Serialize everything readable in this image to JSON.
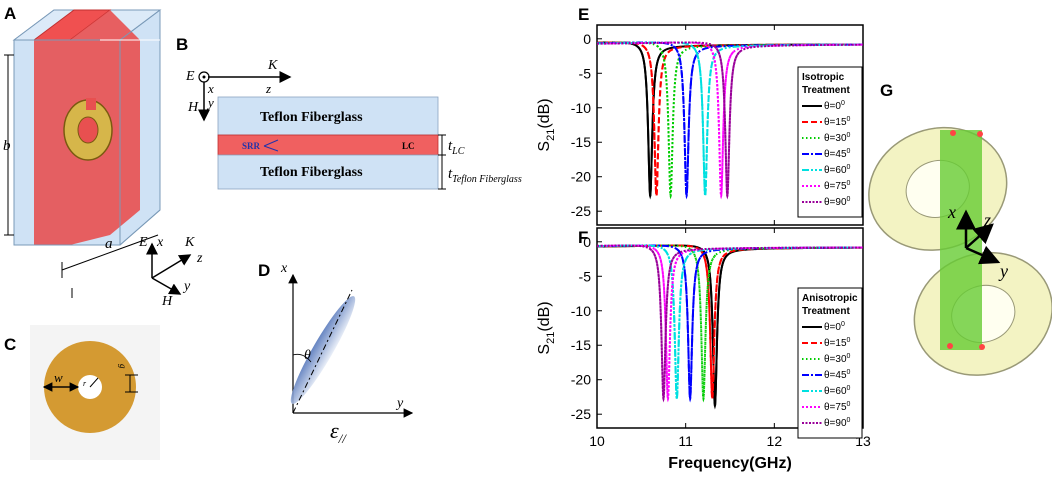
{
  "panels": {
    "A": {
      "label": "A",
      "dim_b": "b",
      "dim_a": "a",
      "ax_E": "E",
      "ax_x": "x",
      "ax_K": "K",
      "ax_z": "z",
      "ax_H": "H",
      "ax_y": "y"
    },
    "B": {
      "label": "B",
      "E": "E",
      "x": "x",
      "K": "K",
      "z": "z",
      "H": "H",
      "y": "y",
      "top_layer": "Teflon Fiberglass",
      "bottom_layer": "Teflon Fiberglass",
      "srr": "SRR",
      "lc": "LC",
      "t_lc_main": "t",
      "t_lc_sub": "LC",
      "t_tf_main": "t",
      "t_tf_sub": "Teflon Fiberglass"
    },
    "C": {
      "label": "C",
      "w": "w",
      "r": "r",
      "g": "g"
    },
    "D": {
      "label": "D",
      "x": "x",
      "y": "y",
      "theta": "θ",
      "eps": "ε",
      "eps_sub": "//"
    },
    "G": {
      "label": "G",
      "x": "x",
      "y": "y",
      "z": "z"
    }
  },
  "chart_data": [
    {
      "type": "line",
      "panel": "E",
      "title": "E",
      "xlabel": "",
      "ylabel": "S21(dB)",
      "ylabel_main": "S",
      "ylabel_sub": "21",
      "ylabel_rest": "(dB)",
      "xlim": [
        10,
        13
      ],
      "ylim": [
        -27,
        2
      ],
      "yticks": [
        0,
        -5,
        -10,
        -15,
        -20,
        -25
      ],
      "legend_title_1": "Isotropic",
      "legend_title_2": "Treatment",
      "legend_pos": "right",
      "series": [
        {
          "name": "θ=0",
          "sup": "0",
          "color": "#000000",
          "dash": "none",
          "f0": 10.6,
          "min": -22,
          "width": 0.028
        },
        {
          "name": "θ=15",
          "sup": "0",
          "color": "#ff0000",
          "dash": "6,3",
          "f0": 10.67,
          "min": -22,
          "width": 0.028
        },
        {
          "name": "θ=30",
          "sup": "0",
          "color": "#00cc00",
          "dash": "1.5,2.5",
          "f0": 10.83,
          "min": -22,
          "width": 0.028
        },
        {
          "name": "θ=45",
          "sup": "0",
          "color": "#0000ff",
          "dash": "7,2,2,2",
          "f0": 11.01,
          "min": -22,
          "width": 0.028
        },
        {
          "name": "θ=60",
          "sup": "0",
          "color": "#00e0e0",
          "dash": "7,2,2,2,2,2",
          "f0": 11.22,
          "min": -22,
          "width": 0.028
        },
        {
          "name": "θ=75",
          "sup": "0",
          "color": "#ff00ff",
          "dash": "2,2",
          "f0": 11.4,
          "min": -22,
          "width": 0.028
        },
        {
          "name": "θ=90",
          "sup": "0",
          "color": "#990099",
          "dash": "2,1.5",
          "f0": 11.47,
          "min": -22,
          "width": 0.028
        }
      ]
    },
    {
      "type": "line",
      "panel": "F",
      "title": "F",
      "xlabel": "Frequency(GHz)",
      "ylabel": "S21(dB)",
      "ylabel_main": "S",
      "ylabel_sub": "21",
      "ylabel_rest": "(dB)",
      "xlim": [
        10,
        13
      ],
      "ylim": [
        -27,
        2
      ],
      "xticks": [
        10,
        11,
        12,
        13
      ],
      "yticks": [
        0,
        -5,
        -10,
        -15,
        -20,
        -25
      ],
      "legend_title_1": "Anisotropic",
      "legend_title_2": "Treatment",
      "legend_pos": "right",
      "series": [
        {
          "name": "θ=0",
          "sup": "0",
          "color": "#000000",
          "dash": "none",
          "f0": 11.33,
          "min": -23,
          "width": 0.028
        },
        {
          "name": "θ=15",
          "sup": "0",
          "color": "#ff0000",
          "dash": "6,3",
          "f0": 11.3,
          "min": -22,
          "width": 0.028
        },
        {
          "name": "θ=30",
          "sup": "0",
          "color": "#00cc00",
          "dash": "1.5,2.5",
          "f0": 11.2,
          "min": -22,
          "width": 0.028
        },
        {
          "name": "θ=45",
          "sup": "0",
          "color": "#0000ff",
          "dash": "7,2,2,2",
          "f0": 11.05,
          "min": -22,
          "width": 0.028
        },
        {
          "name": "θ=60",
          "sup": "0",
          "color": "#00e0e0",
          "dash": "7,2,2,2,2,2",
          "f0": 10.9,
          "min": -22,
          "width": 0.028
        },
        {
          "name": "θ=75",
          "sup": "0",
          "color": "#ff00ff",
          "dash": "2,2",
          "f0": 10.8,
          "min": -22,
          "width": 0.028
        },
        {
          "name": "θ=90",
          "sup": "0",
          "color": "#990099",
          "dash": "2,1.5",
          "f0": 10.75,
          "min": -22,
          "width": 0.028
        }
      ]
    }
  ]
}
